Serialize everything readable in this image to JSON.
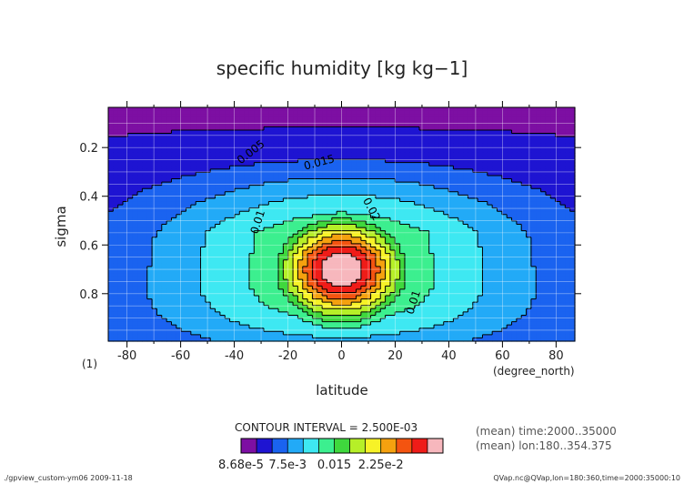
{
  "chart_data": {
    "type": "contour",
    "title": "specific humidity [kg kg−1]",
    "xlabel": "latitude",
    "ylabel": "sigma",
    "x_units": "(degree_north)",
    "y_note": "(1)",
    "xlim": [
      -87,
      87
    ],
    "ylim": [
      0.995,
      0.035
    ],
    "x_ticks": [
      -80,
      -60,
      -40,
      -20,
      0,
      20,
      40,
      60,
      80
    ],
    "y_ticks": [
      0.2,
      0.4,
      0.6,
      0.8
    ],
    "grid": true,
    "contour_interval": "CONTOUR INTERVAL = 2.500E-03",
    "contour_labels": [
      "0.005",
      "0.015",
      "0.01",
      "0.02",
      "0.01"
    ],
    "levels": [
      8.68e-05,
      0.0025,
      0.005,
      0.0075,
      0.01,
      0.0125,
      0.015,
      0.0175,
      0.02,
      0.0225,
      0.025,
      0.0275
    ],
    "colorbar": {
      "labels": [
        "8.68e-5",
        "7.5e-3",
        "0.015",
        "2.25e-2"
      ],
      "colors": [
        "#7d0fa3",
        "#1e14d2",
        "#1a63f0",
        "#22aaf7",
        "#3ee8f2",
        "#3cef8f",
        "#3fd83d",
        "#b6ef28",
        "#f7f227",
        "#f5a10f",
        "#f45410",
        "#ef1c18",
        "#f7b7bd"
      ]
    },
    "field": {
      "peak_value": 0.029,
      "peak_lat": 0,
      "peak_sigma": 0.7
    },
    "annotations": [
      "(mean) time:2000..35000",
      "(mean) lon:180..354.375"
    ]
  },
  "footer": {
    "left": "./gpview_custom-ym06  2009-11-18",
    "right": "QVap.nc@QVap,lon=180:360,time=2000:35000:10"
  }
}
